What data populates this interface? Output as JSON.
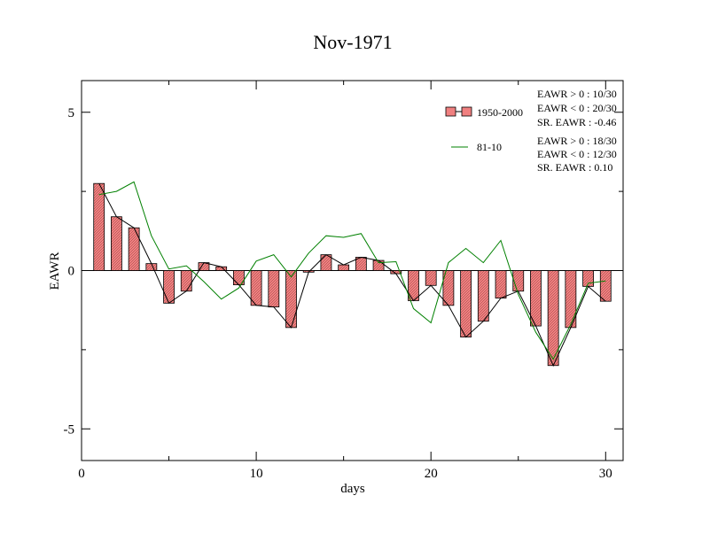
{
  "chart_data": {
    "type": "bar",
    "title": "Nov-1971",
    "xlabel": "days",
    "ylabel": "EAWR",
    "xlim": [
      0,
      31
    ],
    "ylim": [
      -6,
      6
    ],
    "x_ticks": [
      0,
      10,
      20,
      30
    ],
    "x_tick_labels": [
      "0",
      "10",
      "20",
      "30"
    ],
    "y_ticks": [
      -5,
      0,
      5
    ],
    "y_tick_labels": [
      "-5",
      "0",
      "5"
    ],
    "grid": false,
    "legend_placement": "top-right",
    "x": [
      1,
      2,
      3,
      4,
      5,
      6,
      7,
      8,
      9,
      10,
      11,
      12,
      13,
      14,
      15,
      16,
      17,
      18,
      19,
      20,
      21,
      22,
      23,
      24,
      25,
      26,
      27,
      28,
      29,
      30
    ],
    "series": [
      {
        "name": "1950-2000",
        "type": "bar-with-line",
        "bar_color": "#f08080",
        "line_color": "#000000",
        "values": [
          2.75,
          1.7,
          1.35,
          0.22,
          -1.03,
          -0.65,
          0.25,
          0.12,
          -0.45,
          -1.1,
          -1.15,
          -1.8,
          -0.05,
          0.5,
          0.18,
          0.42,
          0.32,
          -0.1,
          -0.95,
          -0.47,
          -1.1,
          -2.1,
          -1.6,
          -0.87,
          -0.65,
          -1.75,
          -3.0,
          -1.8,
          -0.5,
          -0.97
        ]
      },
      {
        "name": "81-10",
        "type": "line",
        "line_color": "#008000",
        "values": [
          2.4,
          2.5,
          2.8,
          1.1,
          0.05,
          0.15,
          -0.35,
          -0.9,
          -0.55,
          0.3,
          0.5,
          -0.2,
          0.55,
          1.1,
          1.05,
          1.17,
          0.25,
          0.28,
          -1.2,
          -1.65,
          0.25,
          0.7,
          0.25,
          0.95,
          -0.75,
          -1.95,
          -2.8,
          -1.7,
          -0.4,
          -0.33
        ]
      }
    ],
    "annotations": {
      "set1": [
        "EAWR > 0 : 10/30",
        "EAWR < 0 : 20/30",
        "SR. EAWR : -0.46"
      ],
      "set2": [
        "EAWR > 0 : 18/30",
        "EAWR < 0 : 12/30",
        "SR. EAWR :  0.10"
      ]
    }
  }
}
